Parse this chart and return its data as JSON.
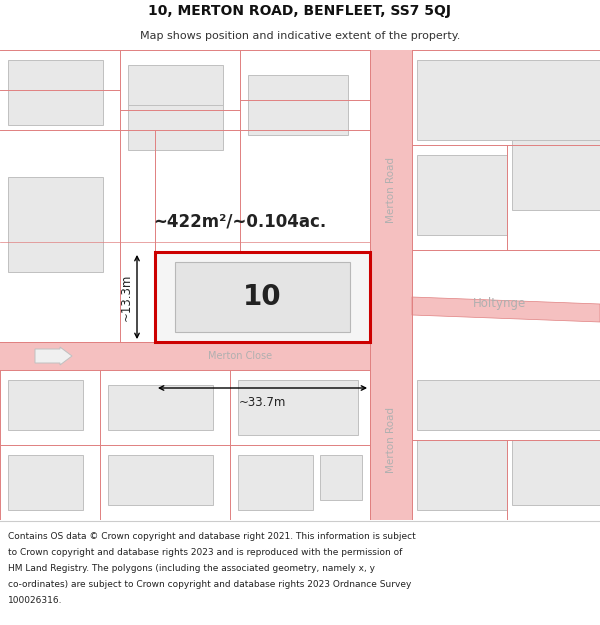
{
  "title": "10, MERTON ROAD, BENFLEET, SS7 5QJ",
  "subtitle": "Map shows position and indicative extent of the property.",
  "footer": "Contains OS data © Crown copyright and database right 2021. This information is subject to Crown copyright and database rights 2023 and is reproduced with the permission of HM Land Registry. The polygons (including the associated geometry, namely x, y co-ordinates) are subject to Crown copyright and database rights 2023 Ordnance Survey 100026316.",
  "bg_color": "#ffffff",
  "map_bg": "#ffffff",
  "road_color": "#f5c0c0",
  "road_line_color": "#e08080",
  "building_fill": "#e8e8e8",
  "building_edge": "#c0c0c0",
  "highlight_fill": "#f5f5f5",
  "highlight_edge": "#cc0000",
  "highlight_edge_width": 2.2,
  "label_color": "#222222",
  "road_label_color": "#b0b0b0",
  "area_label": "~422m²/~0.104ac.",
  "plot_number": "10",
  "dim_width": "~33.7m",
  "dim_height": "~13.3m",
  "street_merton_road": "Merton Road",
  "street_merton_close": "Merton Close",
  "street_holtynge": "Holtynge"
}
